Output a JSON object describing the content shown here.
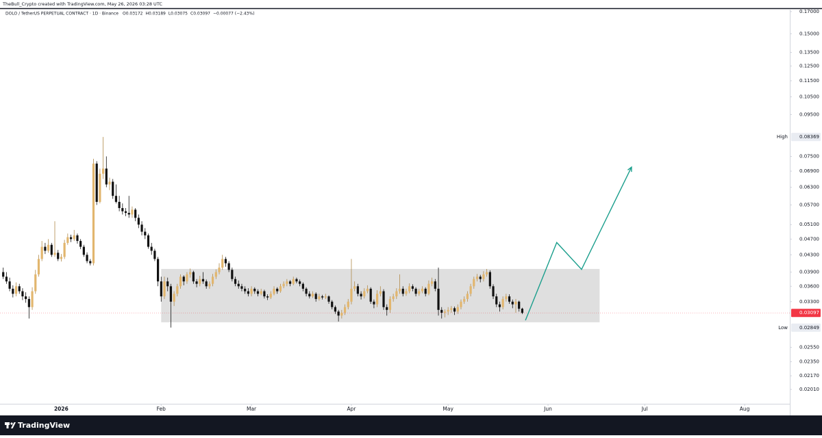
{
  "chart_data": {
    "type": "candlestick",
    "created_by": "TheBull_Crypto created with TradingView.com, May 26, 2026 03:28 UTC",
    "symbol": "DOLO / TetherUS PERPETUAL CONTRACT · 1D · Binance",
    "legend_values": [
      "O0.03172",
      "H0.03189",
      "L0.03075",
      "C0.03097",
      "−0.00077 (−2.43%)"
    ],
    "brand": "TradingView",
    "log_scale": true,
    "up_color": "#e2b66e",
    "down_color": "#111111",
    "xlim": [
      -1,
      244
    ],
    "xticks": [
      {
        "value": 18,
        "label": "2026"
      },
      {
        "value": 49,
        "label": "Feb"
      },
      {
        "value": 77,
        "label": "Mar"
      },
      {
        "value": 108,
        "label": "Apr"
      },
      {
        "value": 138,
        "label": "May"
      },
      {
        "value": 169,
        "label": "Jun"
      },
      {
        "value": 199,
        "label": "Jul"
      },
      {
        "value": 230,
        "label": "Aug"
      }
    ],
    "ylim": [
      0.01853,
      0.1726
    ],
    "yticks": [
      {
        "value": 0.17,
        "label": "0.17000"
      },
      {
        "value": 0.15,
        "label": "0.15000"
      },
      {
        "value": 0.135,
        "label": "0.13500"
      },
      {
        "value": 0.125,
        "label": "0.12500"
      },
      {
        "value": 0.115,
        "label": "0.11500"
      },
      {
        "value": 0.105,
        "label": "0.10500"
      },
      {
        "value": 0.095,
        "label": "0.09500"
      },
      {
        "value": 0.075,
        "label": "0.07500"
      },
      {
        "value": 0.069,
        "label": "0.06900"
      },
      {
        "value": 0.063,
        "label": "0.06300"
      },
      {
        "value": 0.057,
        "label": "0.05700"
      },
      {
        "value": 0.051,
        "label": "0.05100"
      },
      {
        "value": 0.047,
        "label": "0.04700"
      },
      {
        "value": 0.043,
        "label": "0.04300"
      },
      {
        "value": 0.039,
        "label": "0.03900"
      },
      {
        "value": 0.036,
        "label": "0.03600"
      },
      {
        "value": 0.033,
        "label": "0.03300"
      },
      {
        "value": 0.0255,
        "label": "0.02550"
      },
      {
        "value": 0.0235,
        "label": "0.02350"
      },
      {
        "value": 0.0217,
        "label": "0.02170"
      },
      {
        "value": 0.0201,
        "label": "0.02010"
      }
    ],
    "high": {
      "label": "High",
      "value": 0.08369
    },
    "low": {
      "label": "Low",
      "value": 0.02849
    },
    "last_price": {
      "value": 0.03097,
      "color": "#f23645"
    },
    "range_box": {
      "x": [
        49,
        185
      ],
      "y": [
        0.02937,
        0.0397
      ],
      "color": "#d9d9d9"
    },
    "projection": {
      "x": [
        162,
        171.7,
        179.4,
        194.9
      ],
      "y": [
        0.0297,
        0.0461,
        0.0396,
        0.0706
      ],
      "color": "#1a9e8c"
    },
    "candles": [
      [
        0.039,
        0.04,
        0.0375,
        0.038
      ],
      [
        0.038,
        0.039,
        0.0365,
        0.037
      ],
      [
        0.037,
        0.0378,
        0.035,
        0.0355
      ],
      [
        0.0355,
        0.0362,
        0.0338,
        0.0345
      ],
      [
        0.0345,
        0.0368,
        0.034,
        0.036
      ],
      [
        0.036,
        0.0365,
        0.0345,
        0.035
      ],
      [
        0.035,
        0.0356,
        0.0333,
        0.034
      ],
      [
        0.034,
        0.0348,
        0.0328,
        0.0335
      ],
      [
        0.0335,
        0.034,
        0.03,
        0.032
      ],
      [
        0.032,
        0.0358,
        0.0315,
        0.035
      ],
      [
        0.035,
        0.0395,
        0.0345,
        0.0385
      ],
      [
        0.0385,
        0.043,
        0.038,
        0.042
      ],
      [
        0.042,
        0.0465,
        0.0415,
        0.045
      ],
      [
        0.045,
        0.046,
        0.0432,
        0.044
      ],
      [
        0.044,
        0.047,
        0.0435,
        0.0455
      ],
      [
        0.0455,
        0.046,
        0.0425,
        0.043
      ],
      [
        0.043,
        0.052,
        0.0425,
        0.0435
      ],
      [
        0.0435,
        0.0442,
        0.0415,
        0.042
      ],
      [
        0.042,
        0.0432,
        0.0414,
        0.0425
      ],
      [
        0.0425,
        0.0468,
        0.042,
        0.046
      ],
      [
        0.046,
        0.0485,
        0.0455,
        0.0475
      ],
      [
        0.0475,
        0.0482,
        0.0462,
        0.047
      ],
      [
        0.047,
        0.0495,
        0.0465,
        0.048
      ],
      [
        0.048,
        0.0485,
        0.0458,
        0.0465
      ],
      [
        0.0465,
        0.047,
        0.0444,
        0.045
      ],
      [
        0.045,
        0.0455,
        0.0425,
        0.043
      ],
      [
        0.043,
        0.0436,
        0.041,
        0.0415
      ],
      [
        0.0415,
        0.042,
        0.0405,
        0.041
      ],
      [
        0.041,
        0.074,
        0.0405,
        0.072
      ],
      [
        0.072,
        0.073,
        0.057,
        0.058
      ],
      [
        0.058,
        0.07,
        0.0575,
        0.068
      ],
      [
        0.068,
        0.0837,
        0.066,
        0.07
      ],
      [
        0.07,
        0.075,
        0.063,
        0.064
      ],
      [
        0.064,
        0.0665,
        0.062,
        0.065
      ],
      [
        0.065,
        0.066,
        0.059,
        0.06
      ],
      [
        0.06,
        0.064,
        0.0575,
        0.058
      ],
      [
        0.058,
        0.06,
        0.055,
        0.056
      ],
      [
        0.056,
        0.0575,
        0.054,
        0.055
      ],
      [
        0.055,
        0.056,
        0.0535,
        0.0545
      ],
      [
        0.0545,
        0.06,
        0.053,
        0.054
      ],
      [
        0.054,
        0.0565,
        0.053,
        0.0555
      ],
      [
        0.0555,
        0.056,
        0.052,
        0.053
      ],
      [
        0.053,
        0.054,
        0.05,
        0.051
      ],
      [
        0.051,
        0.052,
        0.048,
        0.049
      ],
      [
        0.049,
        0.05,
        0.047,
        0.048
      ],
      [
        0.048,
        0.0485,
        0.0445,
        0.045
      ],
      [
        0.045,
        0.046,
        0.043,
        0.044
      ],
      [
        0.044,
        0.0445,
        0.0415,
        0.042
      ],
      [
        0.042,
        0.0425,
        0.036,
        0.037
      ],
      [
        0.037,
        0.038,
        0.033,
        0.034
      ],
      [
        0.034,
        0.038,
        0.0335,
        0.037
      ],
      [
        0.037,
        0.0378,
        0.035,
        0.036
      ],
      [
        0.036,
        0.0365,
        0.0285,
        0.033
      ],
      [
        0.033,
        0.035,
        0.0322,
        0.0345
      ],
      [
        0.0345,
        0.0365,
        0.034,
        0.036
      ],
      [
        0.036,
        0.0385,
        0.0355,
        0.038
      ],
      [
        0.038,
        0.0383,
        0.0362,
        0.037
      ],
      [
        0.037,
        0.039,
        0.0365,
        0.0385
      ],
      [
        0.0385,
        0.0398,
        0.0378,
        0.039
      ],
      [
        0.039,
        0.0393,
        0.0365,
        0.037
      ],
      [
        0.037,
        0.0375,
        0.0358,
        0.0365
      ],
      [
        0.0365,
        0.0382,
        0.036,
        0.0375
      ],
      [
        0.0375,
        0.039,
        0.0365,
        0.037
      ],
      [
        0.037,
        0.0374,
        0.0355,
        0.036
      ],
      [
        0.036,
        0.037,
        0.0355,
        0.0365
      ],
      [
        0.0365,
        0.0386,
        0.036,
        0.038
      ],
      [
        0.038,
        0.0396,
        0.0375,
        0.039
      ],
      [
        0.039,
        0.041,
        0.0385,
        0.04
      ],
      [
        0.04,
        0.043,
        0.0395,
        0.042
      ],
      [
        0.042,
        0.0425,
        0.0402,
        0.041
      ],
      [
        0.041,
        0.0415,
        0.039,
        0.0395
      ],
      [
        0.0395,
        0.04,
        0.037,
        0.0375
      ],
      [
        0.0375,
        0.038,
        0.036,
        0.0365
      ],
      [
        0.0365,
        0.0372,
        0.0355,
        0.036
      ],
      [
        0.036,
        0.0365,
        0.035,
        0.0355
      ],
      [
        0.0355,
        0.036,
        0.0345,
        0.035
      ],
      [
        0.035,
        0.0356,
        0.034,
        0.0345
      ],
      [
        0.0345,
        0.036,
        0.034,
        0.0355
      ],
      [
        0.0355,
        0.0358,
        0.0345,
        0.035
      ],
      [
        0.035,
        0.0354,
        0.034,
        0.0345
      ],
      [
        0.0345,
        0.0355,
        0.0342,
        0.035
      ],
      [
        0.035,
        0.0353,
        0.0336,
        0.034
      ],
      [
        0.034,
        0.0344,
        0.0333,
        0.0338
      ],
      [
        0.0338,
        0.035,
        0.0335,
        0.0345
      ],
      [
        0.0345,
        0.036,
        0.0342,
        0.0355
      ],
      [
        0.0355,
        0.0358,
        0.0345,
        0.035
      ],
      [
        0.035,
        0.0365,
        0.0347,
        0.036
      ],
      [
        0.036,
        0.037,
        0.0356,
        0.0365
      ],
      [
        0.0365,
        0.0375,
        0.036,
        0.037
      ],
      [
        0.037,
        0.0373,
        0.036,
        0.0365
      ],
      [
        0.0365,
        0.038,
        0.0362,
        0.0375
      ],
      [
        0.0375,
        0.0378,
        0.0366,
        0.037
      ],
      [
        0.037,
        0.0374,
        0.036,
        0.0365
      ],
      [
        0.0365,
        0.0368,
        0.035,
        0.0355
      ],
      [
        0.0355,
        0.0358,
        0.034,
        0.0345
      ],
      [
        0.0345,
        0.035,
        0.0336,
        0.034
      ],
      [
        0.034,
        0.035,
        0.0337,
        0.0345
      ],
      [
        0.0345,
        0.0348,
        0.033,
        0.0335
      ],
      [
        0.0335,
        0.0345,
        0.0332,
        0.034
      ],
      [
        0.034,
        0.0343,
        0.0334,
        0.0338
      ],
      [
        0.0338,
        0.0345,
        0.0335,
        0.034
      ],
      [
        0.034,
        0.0342,
        0.0326,
        0.033
      ],
      [
        0.033,
        0.0333,
        0.0316,
        0.032
      ],
      [
        0.032,
        0.0323,
        0.0308,
        0.0312
      ],
      [
        0.0312,
        0.0315,
        0.0295,
        0.0305
      ],
      [
        0.0305,
        0.0315,
        0.03,
        0.031
      ],
      [
        0.031,
        0.0325,
        0.0306,
        0.032
      ],
      [
        0.032,
        0.0335,
        0.0316,
        0.033
      ],
      [
        0.033,
        0.042,
        0.0325,
        0.0355
      ],
      [
        0.0355,
        0.037,
        0.035,
        0.036
      ],
      [
        0.036,
        0.0365,
        0.034,
        0.0345
      ],
      [
        0.0345,
        0.035,
        0.0334,
        0.034
      ],
      [
        0.034,
        0.0356,
        0.0336,
        0.035
      ],
      [
        0.035,
        0.0362,
        0.0346,
        0.0355
      ],
      [
        0.0355,
        0.0358,
        0.0326,
        0.033
      ],
      [
        0.033,
        0.0334,
        0.0318,
        0.0325
      ],
      [
        0.0325,
        0.0352,
        0.032,
        0.0345
      ],
      [
        0.0345,
        0.036,
        0.034,
        0.035
      ],
      [
        0.035,
        0.0354,
        0.0315,
        0.032
      ],
      [
        0.032,
        0.0325,
        0.0305,
        0.0315
      ],
      [
        0.0315,
        0.034,
        0.031,
        0.0335
      ],
      [
        0.0335,
        0.0345,
        0.033,
        0.034
      ],
      [
        0.034,
        0.0356,
        0.0335,
        0.035
      ],
      [
        0.035,
        0.0385,
        0.0345,
        0.0355
      ],
      [
        0.0355,
        0.036,
        0.034,
        0.0345
      ],
      [
        0.0345,
        0.0355,
        0.0341,
        0.035
      ],
      [
        0.035,
        0.0366,
        0.0346,
        0.036
      ],
      [
        0.036,
        0.0364,
        0.035,
        0.0355
      ],
      [
        0.0355,
        0.0358,
        0.034,
        0.0345
      ],
      [
        0.0345,
        0.0355,
        0.0341,
        0.035
      ],
      [
        0.035,
        0.036,
        0.0346,
        0.0355
      ],
      [
        0.0355,
        0.0358,
        0.034,
        0.0345
      ],
      [
        0.0345,
        0.0372,
        0.0342,
        0.0365
      ],
      [
        0.0365,
        0.0378,
        0.036,
        0.037
      ],
      [
        0.037,
        0.0375,
        0.035,
        0.0355
      ],
      [
        0.0355,
        0.04,
        0.0305,
        0.0315
      ],
      [
        0.0315,
        0.032,
        0.03,
        0.031
      ],
      [
        0.031,
        0.0316,
        0.0302,
        0.0312
      ],
      [
        0.0312,
        0.032,
        0.0306,
        0.0315
      ],
      [
        0.0315,
        0.0322,
        0.031,
        0.0318
      ],
      [
        0.0318,
        0.0321,
        0.0306,
        0.0312
      ],
      [
        0.0312,
        0.0325,
        0.0308,
        0.032
      ],
      [
        0.032,
        0.0334,
        0.0316,
        0.033
      ],
      [
        0.033,
        0.034,
        0.0326,
        0.0335
      ],
      [
        0.0335,
        0.035,
        0.033,
        0.0345
      ],
      [
        0.0345,
        0.0365,
        0.034,
        0.036
      ],
      [
        0.036,
        0.038,
        0.0355,
        0.0375
      ],
      [
        0.0375,
        0.0386,
        0.037,
        0.038
      ],
      [
        0.038,
        0.0384,
        0.0368,
        0.0375
      ],
      [
        0.0375,
        0.0392,
        0.037,
        0.0385
      ],
      [
        0.0385,
        0.0397,
        0.038,
        0.039
      ],
      [
        0.039,
        0.0394,
        0.0355,
        0.036
      ],
      [
        0.036,
        0.0364,
        0.0335,
        0.034
      ],
      [
        0.034,
        0.0345,
        0.032,
        0.0325
      ],
      [
        0.0325,
        0.033,
        0.0312,
        0.032
      ],
      [
        0.032,
        0.034,
        0.0316,
        0.0335
      ],
      [
        0.0335,
        0.0345,
        0.033,
        0.034
      ],
      [
        0.034,
        0.0344,
        0.0326,
        0.033
      ],
      [
        0.033,
        0.0334,
        0.0318,
        0.0325
      ],
      [
        0.0325,
        0.0335,
        0.031,
        0.033
      ],
      [
        0.033,
        0.0332,
        0.0312,
        0.0317
      ],
      [
        0.03172,
        0.03189,
        0.03075,
        0.03097
      ]
    ]
  }
}
